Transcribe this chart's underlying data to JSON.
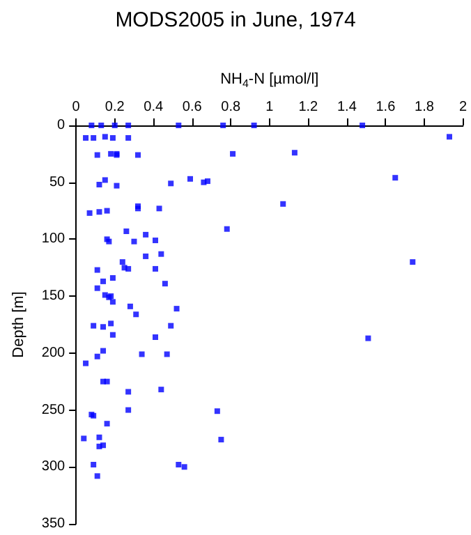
{
  "chart_data": {
    "type": "scatter",
    "title": "MODS2005 in June, 1974",
    "xlabel": "NH$_{4}$-N [µmol/l]",
    "ylabel": "Depth [m]",
    "x": [
      0.08,
      0.13,
      0.2,
      0.27,
      0.53,
      0.76,
      0.92,
      1.48,
      0.05,
      0.09,
      0.15,
      0.19,
      0.27,
      1.93,
      0.11,
      0.18,
      0.21,
      0.21,
      0.32,
      0.81,
      1.13,
      0.12,
      0.15,
      0.21,
      0.49,
      0.59,
      0.66,
      0.68,
      1.65,
      0.07,
      0.12,
      0.16,
      0.32,
      0.32,
      0.43,
      1.07,
      0.78,
      0.26,
      0.16,
      0.17,
      0.3,
      0.36,
      0.41,
      0.44,
      0.36,
      0.11,
      0.24,
      0.25,
      0.27,
      0.41,
      1.74,
      0.14,
      0.19,
      0.46,
      0.11,
      0.15,
      0.17,
      0.18,
      0.19,
      0.28,
      0.31,
      0.52,
      0.09,
      0.14,
      0.18,
      0.19,
      0.49,
      0.41,
      1.51,
      0.14,
      0.11,
      0.05,
      0.34,
      0.47,
      0.14,
      0.16,
      0.27,
      0.44,
      0.08,
      0.09,
      0.27,
      0.73,
      0.16,
      0.04,
      0.12,
      0.12,
      0.14,
      0.75,
      0.09,
      0.11,
      0.53,
      0.56
    ],
    "values": [
      0,
      0,
      0,
      0,
      0,
      0,
      0,
      0,
      11,
      11,
      10,
      11,
      11,
      10,
      26,
      25,
      25,
      26,
      26,
      25,
      24,
      52,
      48,
      53,
      51,
      47,
      50,
      49,
      46,
      77,
      76,
      75,
      71,
      73,
      73,
      69,
      91,
      93,
      100,
      102,
      102,
      96,
      101,
      113,
      115,
      127,
      120,
      125,
      126,
      126,
      120,
      137,
      134,
      139,
      143,
      149,
      151,
      150,
      155,
      159,
      166,
      161,
      176,
      177,
      174,
      184,
      176,
      186,
      187,
      198,
      203,
      209,
      201,
      201,
      225,
      225,
      234,
      232,
      254,
      255,
      250,
      251,
      262,
      275,
      274,
      282,
      281,
      276,
      298,
      308,
      298,
      300
    ],
    "color": "#0000ff",
    "marker": "square",
    "xlim": [
      0,
      2
    ],
    "xticks": [
      0,
      0.2,
      0.4,
      0.6,
      0.8,
      1,
      1.2,
      1.4,
      1.6,
      1.8,
      2
    ],
    "ylim": [
      350,
      0
    ],
    "yticks": [
      0,
      50,
      100,
      150,
      200,
      250,
      300,
      350
    ],
    "grid": false
  }
}
